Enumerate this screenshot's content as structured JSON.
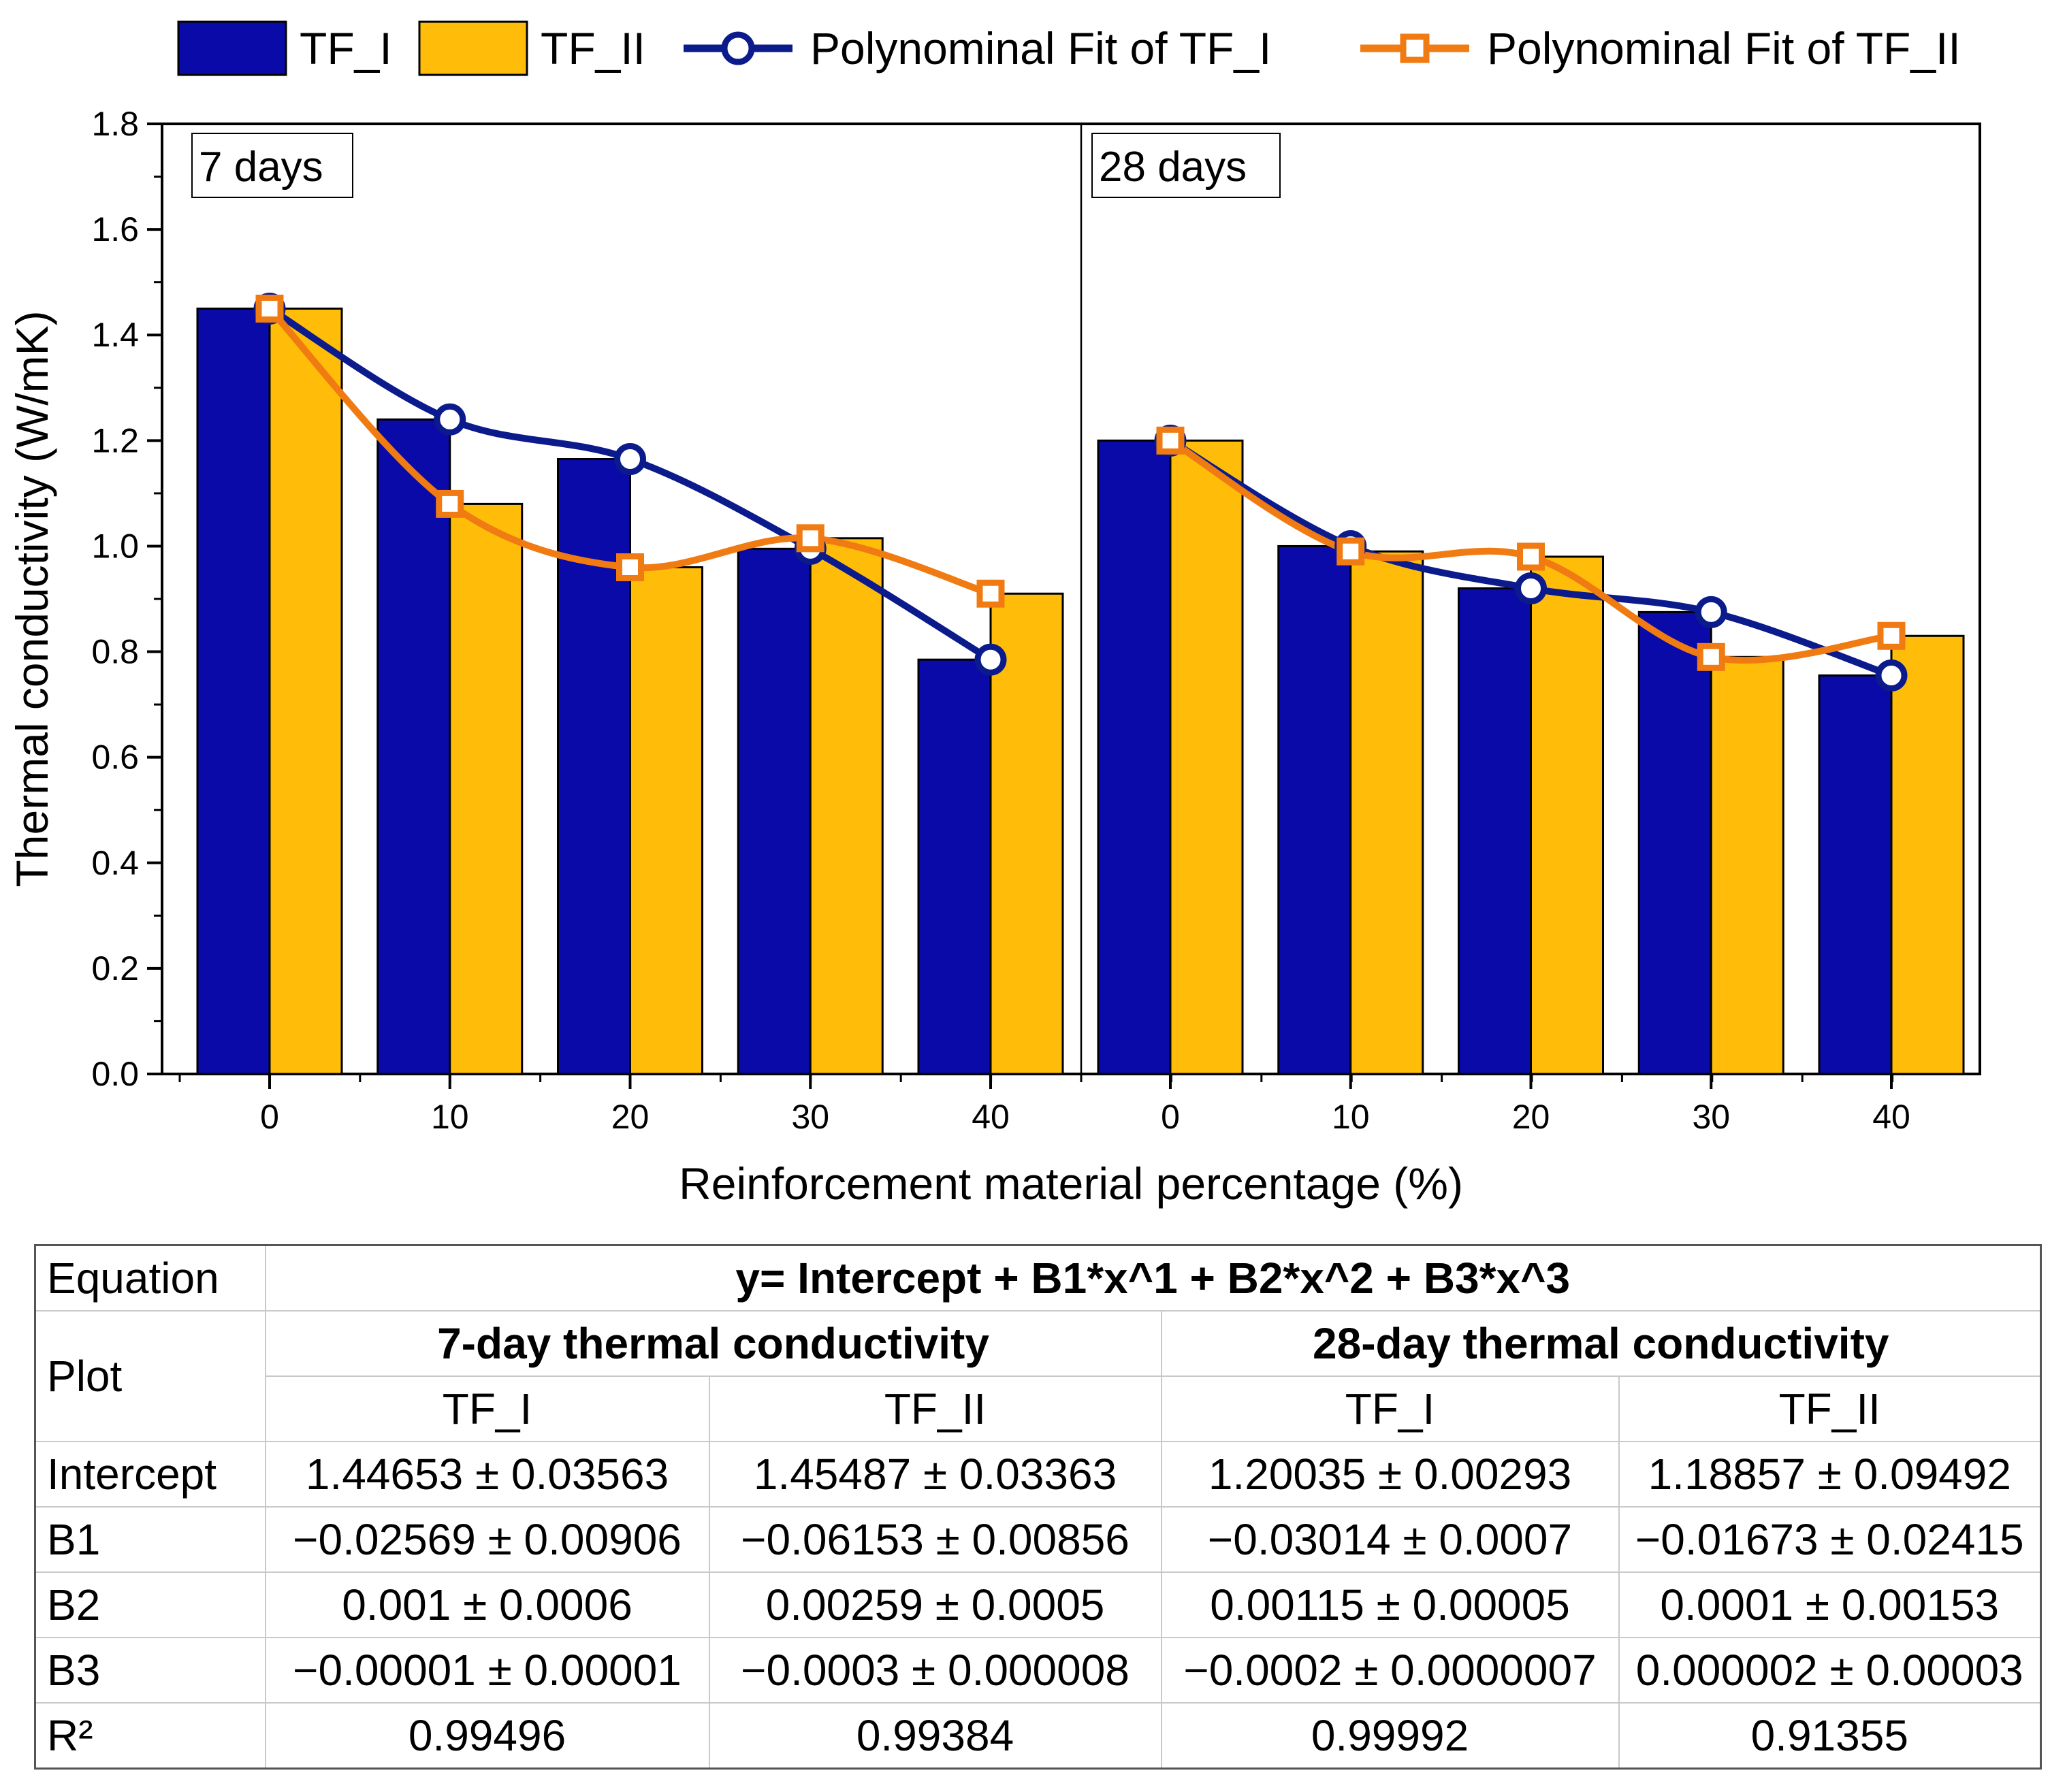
{
  "chart_data": {
    "type": "bar",
    "ylabel": "Thermal conductivity (W/mK)",
    "xlabel": "Reinforcement material percentage (%)",
    "ylim": [
      0,
      1.8
    ],
    "yticks": [
      "0.0",
      "0.2",
      "0.4",
      "0.6",
      "0.8",
      "1.0",
      "1.2",
      "1.4",
      "1.6",
      "1.8"
    ],
    "legend": {
      "placement": "top",
      "entries": [
        "TF_I",
        "TF_II",
        "Polynominal Fit of TF_I",
        "Polynominal Fit of TF_II"
      ]
    },
    "colors": {
      "tf1": "#0a0aa8",
      "tf2": "#ffbd0a",
      "fit1": "#0b1b8c",
      "fit2": "#f07b12"
    },
    "panels": [
      {
        "label": "7 days",
        "categories": [
          "0",
          "10",
          "20",
          "30",
          "40"
        ],
        "series": [
          {
            "name": "TF_I",
            "values": [
              1.45,
              1.24,
              1.165,
              0.995,
              0.785
            ]
          },
          {
            "name": "TF_II",
            "values": [
              1.45,
              1.08,
              0.96,
              1.015,
              0.91
            ]
          }
        ]
      },
      {
        "label": "28 days",
        "categories": [
          "0",
          "10",
          "20",
          "30",
          "40"
        ],
        "series": [
          {
            "name": "TF_I",
            "values": [
              1.2,
              1.0,
              0.92,
              0.875,
              0.755
            ]
          },
          {
            "name": "TF_II",
            "values": [
              1.2,
              0.99,
              0.98,
              0.79,
              0.83
            ]
          }
        ]
      }
    ]
  },
  "table": {
    "equation_label": "Equation",
    "equation": "y= Intercept + B1*x^1 + B2*x^2 + B3*x^3",
    "plot_label": "Plot",
    "group1": "7-day thermal conductivity",
    "group2": "28-day thermal conductivity",
    "cols": [
      "TF_I",
      "TF_II",
      "TF_I",
      "TF_II"
    ],
    "rows": [
      {
        "label": "Intercept",
        "values": [
          "1.44653 ± 0.03563",
          "1.45487 ± 0.03363",
          "1.20035 ± 0.00293",
          "1.18857 ± 0.09492"
        ]
      },
      {
        "label": "B1",
        "values": [
          "−0.02569 ± 0.00906",
          "−0.06153 ± 0.00856",
          "−0.03014 ± 0.0007",
          "−0.01673 ± 0.02415"
        ]
      },
      {
        "label": "B2",
        "values": [
          "0.001 ± 0.0006",
          "0.00259 ± 0.0005",
          "0.00115 ± 0.00005",
          "0.0001 ± 0.00153"
        ]
      },
      {
        "label": "B3",
        "values": [
          "−0.00001 ± 0.00001",
          "−0.0003 ± 0.000008",
          "−0.0002 ± 0.0000007",
          "0.000002 ± 0.00003"
        ]
      },
      {
        "label": "R²",
        "values": [
          "0.99496",
          "0.99384",
          "0.99992",
          "0.91355"
        ]
      }
    ]
  }
}
